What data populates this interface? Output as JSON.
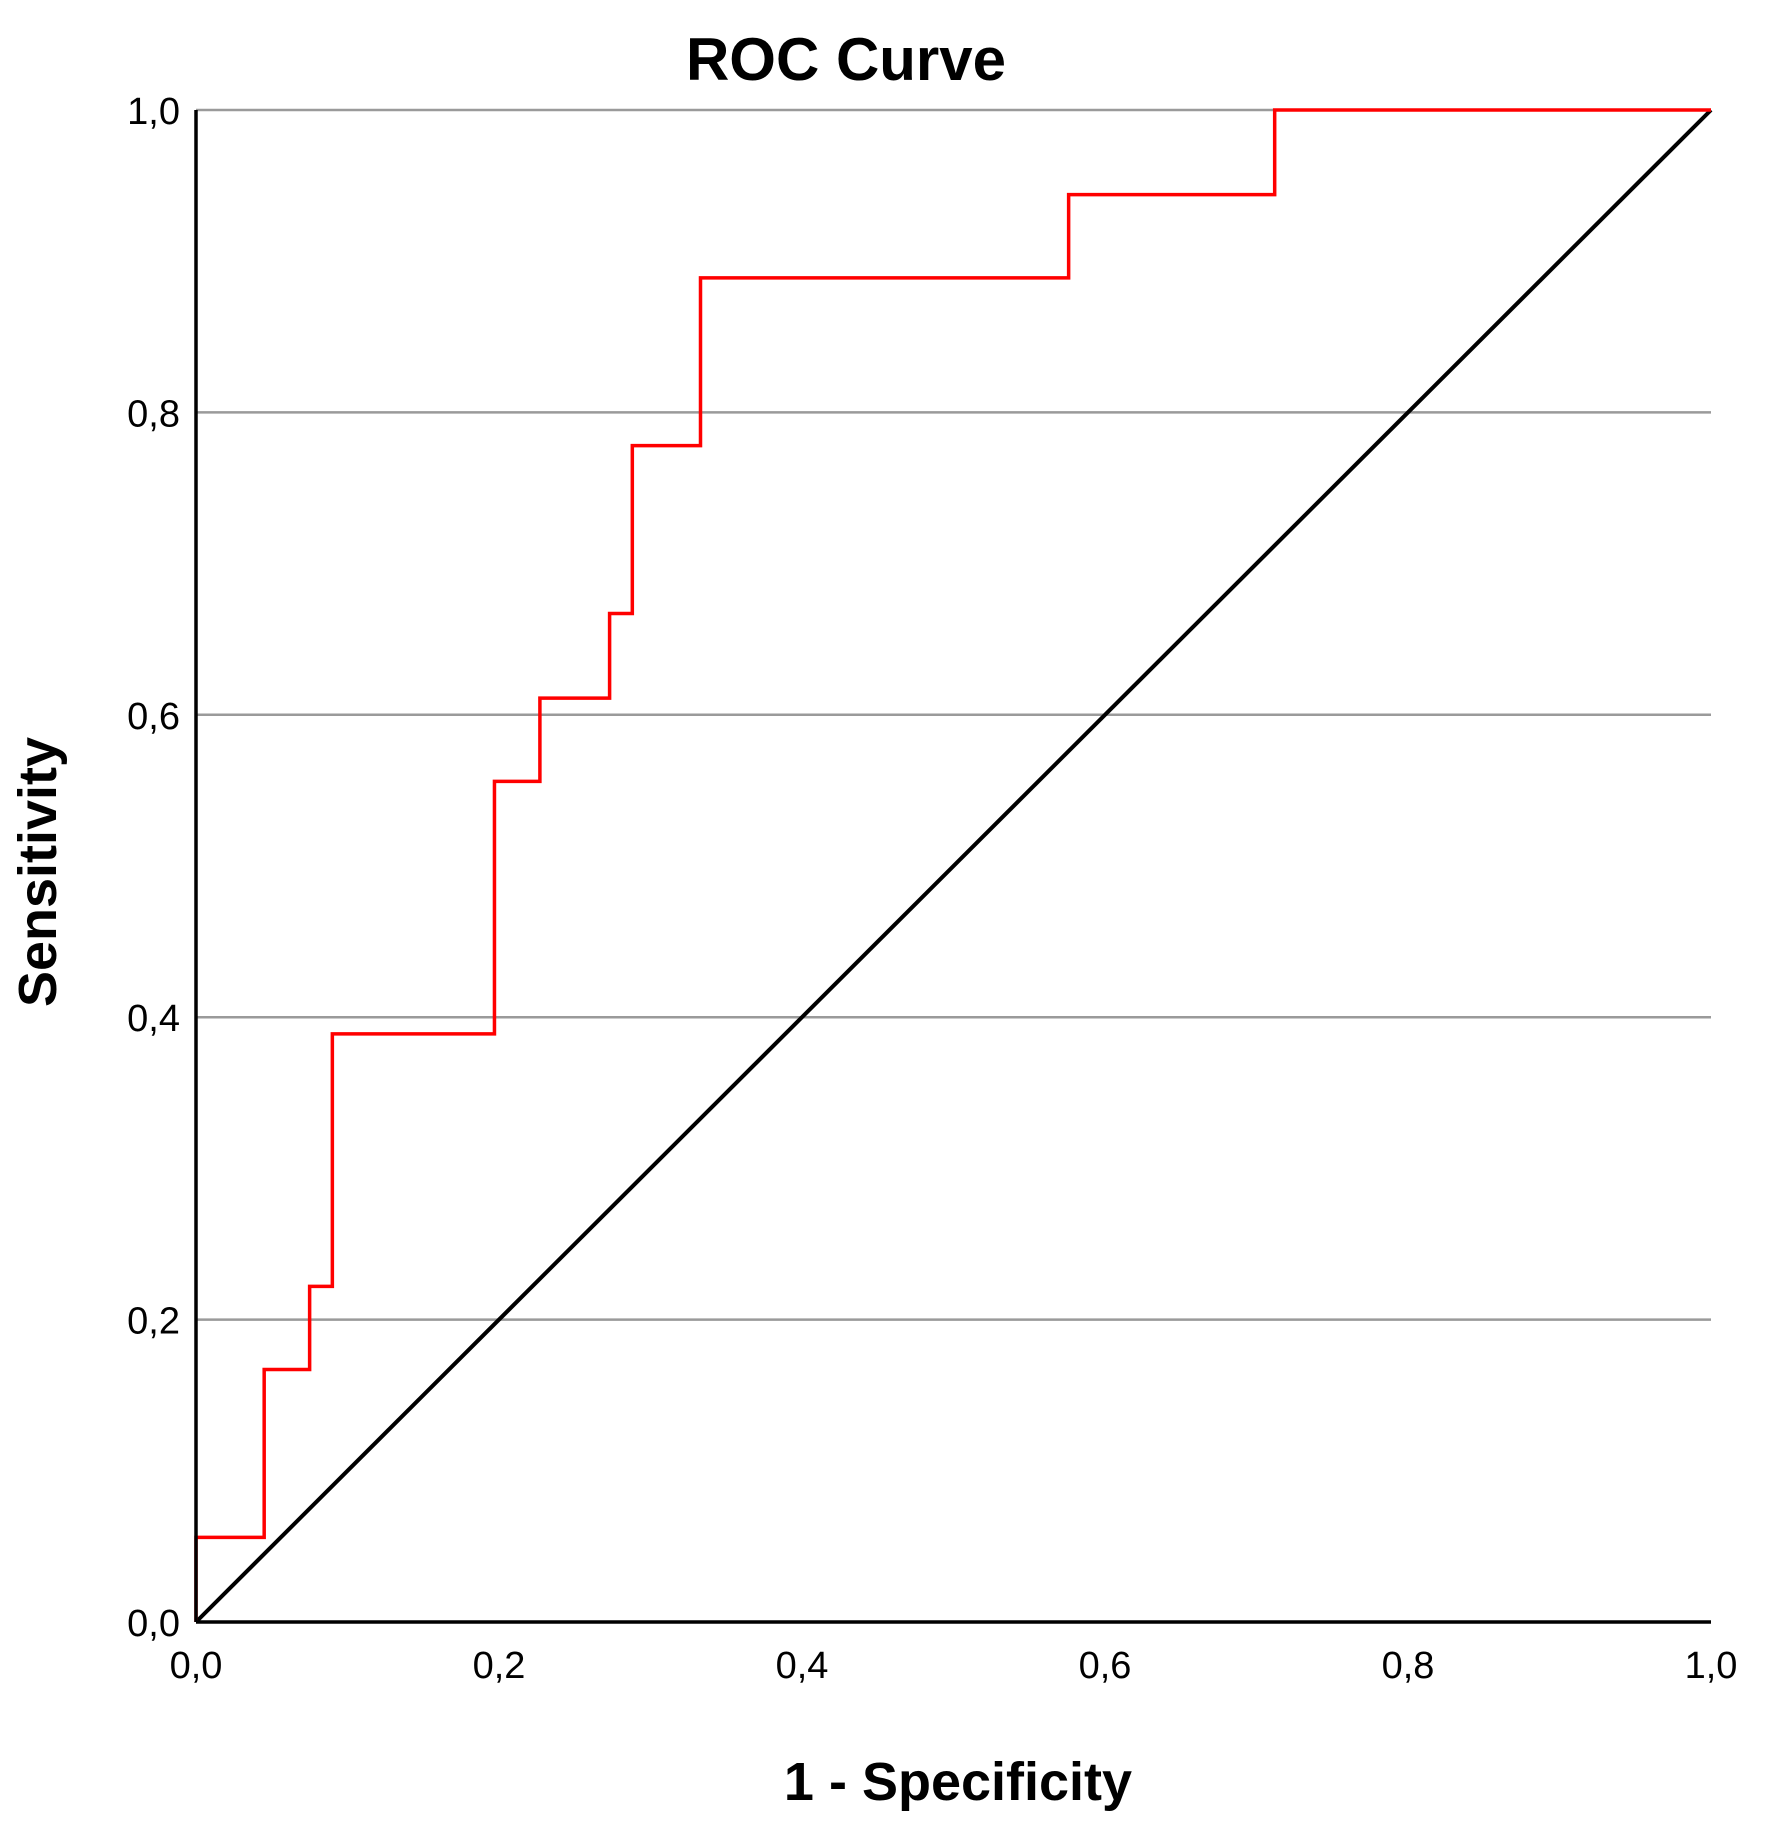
{
  "chart_data": {
    "type": "line",
    "title": "ROC Curve",
    "xlabel": "1 - Specificity",
    "ylabel": "Sensitivity",
    "xlim": [
      0,
      1
    ],
    "ylim": [
      0,
      1
    ],
    "x_ticks": [
      "0,0",
      "0,2",
      "0,4",
      "0,6",
      "0,8",
      "1,0"
    ],
    "y_ticks": [
      "0,0",
      "0,2",
      "0,4",
      "0,6",
      "0,8",
      "1,0"
    ],
    "tick_values": [
      0,
      0.2,
      0.4,
      0.6,
      0.8,
      1.0
    ],
    "grid": "horizontal",
    "legend": "none",
    "series": [
      {
        "color": "#ff0000",
        "style": "step",
        "points": [
          [
            0.0,
            0.0
          ],
          [
            0.0,
            0.056
          ],
          [
            0.045,
            0.056
          ],
          [
            0.045,
            0.167
          ],
          [
            0.075,
            0.167
          ],
          [
            0.075,
            0.222
          ],
          [
            0.09,
            0.222
          ],
          [
            0.09,
            0.389
          ],
          [
            0.197,
            0.389
          ],
          [
            0.197,
            0.556
          ],
          [
            0.227,
            0.556
          ],
          [
            0.227,
            0.611
          ],
          [
            0.273,
            0.611
          ],
          [
            0.273,
            0.667
          ],
          [
            0.288,
            0.667
          ],
          [
            0.288,
            0.778
          ],
          [
            0.333,
            0.778
          ],
          [
            0.333,
            0.889
          ],
          [
            0.576,
            0.889
          ],
          [
            0.576,
            0.944
          ],
          [
            0.712,
            0.944
          ],
          [
            0.712,
            1.0
          ],
          [
            1.0,
            1.0
          ]
        ]
      },
      {
        "color": "#000000",
        "style": "reference",
        "points": [
          [
            0,
            0
          ],
          [
            1,
            1
          ]
        ]
      }
    ]
  }
}
